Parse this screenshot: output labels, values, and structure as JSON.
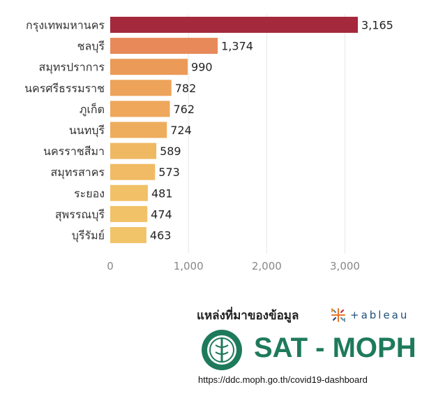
{
  "chart_data": {
    "type": "bar",
    "orientation": "horizontal",
    "categories": [
      "กรุงเทพมหานคร",
      "ชลบุรี",
      "สมุทรปราการ",
      "นครศรีธรรมราช",
      "ภูเก็ต",
      "นนทบุรี",
      "นครราชสีมา",
      "สมุทรสาคร",
      "ระยอง",
      "สุพรรณบุรี",
      "บุรีรัมย์"
    ],
    "values": [
      3165,
      1374,
      990,
      782,
      762,
      724,
      589,
      573,
      481,
      474,
      463
    ],
    "value_labels": [
      "3,165",
      "1,374",
      "990",
      "782",
      "762",
      "724",
      "589",
      "573",
      "481",
      "474",
      "463"
    ],
    "colors": [
      "#a5293c",
      "#e8895a",
      "#eb9a58",
      "#eda35a",
      "#eea75b",
      "#eeac5d",
      "#efb863",
      "#f0bb64",
      "#f1c168",
      "#f1c268",
      "#f1c46a"
    ],
    "x_ticks": [
      0,
      1000,
      2000,
      3000
    ],
    "x_tick_labels": [
      "0",
      "1,000",
      "2,000",
      "3,000"
    ],
    "xlim": [
      0,
      3300
    ],
    "title": "",
    "xlabel": "",
    "ylabel": ""
  },
  "source": {
    "title": "แหล่งที่มาของข้อมูล",
    "tableau_label": "+ableau",
    "org": "SAT - MOPH",
    "url": "https://ddc.moph.go.th/covid19-dashboard",
    "accent": "#1e7a5a"
  }
}
